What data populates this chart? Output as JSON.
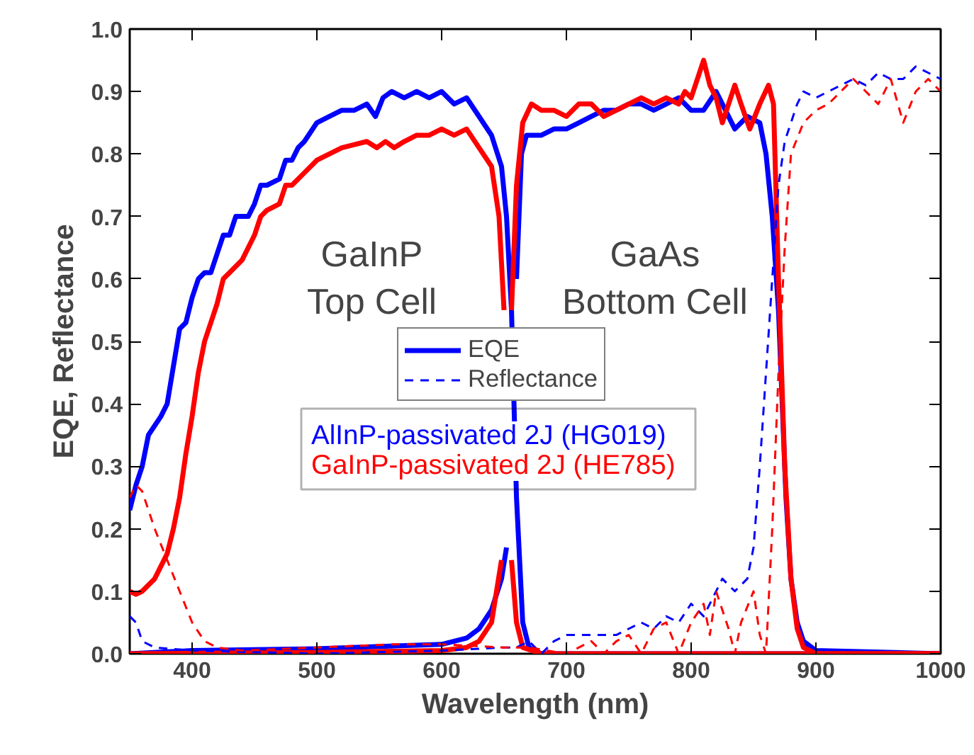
{
  "chart_data": {
    "type": "line",
    "xlabel": "Wavelength (nm)",
    "ylabel": "EQE, Reflectance",
    "xlim": [
      350,
      1000
    ],
    "ylim": [
      0,
      1.0
    ],
    "xticks": [
      400,
      500,
      600,
      700,
      800,
      900,
      1000
    ],
    "yticks": [
      {
        "value": 0,
        "label": "0.0"
      },
      {
        "value": 0.1,
        "label": "0.1"
      },
      {
        "value": 0.2,
        "label": "0.2"
      },
      {
        "value": 0.3,
        "label": "0.3"
      },
      {
        "value": 0.4,
        "label": "0.4"
      },
      {
        "value": 0.5,
        "label": "0.5"
      },
      {
        "value": 0.6,
        "label": "0.6"
      },
      {
        "value": 0.7,
        "label": "0.7"
      },
      {
        "value": 0.8,
        "label": "0.8"
      },
      {
        "value": 0.9,
        "label": "0.9"
      },
      {
        "value": 1.0,
        "label": "1.0"
      }
    ],
    "grid": false,
    "legend": "center",
    "marker": "none",
    "line_style": "solid",
    "annotations": [
      "GaInP\nTop Cell",
      "GaAs\nBottom Cell",
      "AlInP-passivated 2J (HG019)",
      "GaInP-passivated 2J (HE785)"
    ],
    "series": [
      {
        "name": "EQE",
        "color": "#0000ff",
        "x": [
          350,
          355,
          360,
          365,
          375,
          380,
          385,
          390,
          395,
          400,
          405,
          410,
          415,
          420,
          425,
          430,
          435,
          445,
          450,
          455,
          460,
          470,
          475,
          480,
          485,
          490,
          500,
          510,
          520,
          530,
          540,
          547,
          553,
          560,
          570,
          580,
          590,
          600,
          610,
          620,
          630,
          640,
          648,
          652,
          656,
          660,
          665,
          670,
          680,
          1000
        ],
        "values": [
          0.23,
          0.27,
          0.3,
          0.35,
          0.38,
          0.4,
          0.46,
          0.52,
          0.53,
          0.57,
          0.6,
          0.61,
          0.61,
          0.64,
          0.67,
          0.67,
          0.7,
          0.7,
          0.72,
          0.75,
          0.75,
          0.76,
          0.79,
          0.79,
          0.81,
          0.82,
          0.85,
          0.86,
          0.87,
          0.87,
          0.88,
          0.86,
          0.89,
          0.9,
          0.89,
          0.9,
          0.89,
          0.9,
          0.88,
          0.89,
          0.86,
          0.83,
          0.78,
          0.7,
          0.55,
          0.25,
          0.05,
          0.01,
          0.0,
          0.0
        ]
      },
      {
        "color": "#0000ff",
        "x": [
          350,
          400,
          500,
          600,
          620,
          630,
          640,
          648,
          652,
          656,
          660,
          664,
          668,
          675,
          680,
          690,
          700,
          710,
          720,
          730,
          740,
          750,
          760,
          770,
          780,
          790,
          800,
          810,
          820,
          825,
          835,
          845,
          855,
          860,
          865,
          870,
          873,
          876,
          880,
          885,
          890,
          900,
          1000
        ],
        "values": [
          0.0,
          0.005,
          0.008,
          0.015,
          0.025,
          0.04,
          0.07,
          0.12,
          0.17,
          null,
          0.6,
          0.8,
          0.83,
          0.83,
          0.83,
          0.84,
          0.84,
          0.85,
          0.86,
          0.87,
          0.87,
          0.88,
          0.88,
          0.87,
          0.88,
          0.89,
          0.87,
          0.87,
          0.9,
          0.88,
          0.84,
          0.86,
          0.85,
          0.8,
          0.7,
          0.55,
          0.4,
          0.25,
          0.12,
          0.05,
          0.02,
          0.005,
          0.0
        ]
      },
      {
        "color": "#ff0000",
        "x": [
          350,
          355,
          360,
          370,
          380,
          385,
          390,
          395,
          400,
          405,
          410,
          415,
          420,
          425,
          430,
          440,
          450,
          455,
          460,
          470,
          475,
          480,
          490,
          500,
          510,
          520,
          540,
          548,
          555,
          562,
          570,
          580,
          590,
          600,
          610,
          620,
          630,
          640,
          646,
          650,
          653,
          656,
          660,
          665,
          680,
          1000
        ],
        "values": [
          0.1,
          0.095,
          0.1,
          0.12,
          0.16,
          0.2,
          0.25,
          0.32,
          0.38,
          0.45,
          0.5,
          0.53,
          0.56,
          0.6,
          0.61,
          0.63,
          0.67,
          0.7,
          0.71,
          0.72,
          0.75,
          0.75,
          0.77,
          0.79,
          0.8,
          0.81,
          0.82,
          0.81,
          0.82,
          0.81,
          0.82,
          0.83,
          0.83,
          0.84,
          0.83,
          0.84,
          0.81,
          0.78,
          0.7,
          0.55,
          null,
          0.15,
          0.05,
          0.01,
          0.0,
          0.0
        ]
      },
      {
        "color": "#ff0000",
        "x": [
          350,
          500,
          600,
          620,
          630,
          640,
          648,
          652,
          656,
          660,
          665,
          672,
          680,
          690,
          700,
          710,
          720,
          730,
          740,
          750,
          760,
          770,
          780,
          790,
          795,
          800,
          810,
          815,
          820,
          825,
          830,
          835,
          840,
          847,
          855,
          862,
          866,
          870,
          875,
          880,
          885,
          890,
          900,
          1000
        ],
        "values": [
          0.0,
          0.002,
          0.005,
          0.01,
          0.02,
          0.05,
          0.15,
          null,
          0.55,
          0.75,
          0.85,
          0.88,
          0.87,
          0.87,
          0.86,
          0.88,
          0.88,
          0.86,
          0.87,
          0.88,
          0.89,
          0.88,
          0.89,
          0.88,
          0.9,
          0.89,
          0.95,
          0.91,
          0.89,
          0.85,
          0.88,
          0.91,
          0.88,
          0.84,
          0.88,
          0.91,
          0.88,
          0.6,
          0.3,
          0.12,
          0.04,
          0.01,
          0.0,
          0.0
        ]
      },
      {
        "name": "Reflectance",
        "color": "#0000ff",
        "line_style": "dashed",
        "x": [
          350,
          355,
          360,
          370,
          400,
          500,
          600,
          650,
          660,
          670,
          680,
          690,
          700,
          720,
          740,
          750,
          760,
          770,
          780,
          790,
          800,
          810,
          820,
          825,
          835,
          845,
          850,
          855,
          860,
          865,
          870,
          875,
          880,
          885,
          890,
          900,
          910,
          920,
          930,
          940,
          950,
          960,
          970,
          980,
          990,
          1000
        ],
        "values": [
          0.06,
          0.05,
          0.02,
          0.01,
          0.005,
          0.0,
          0.005,
          0.01,
          0.01,
          0.02,
          0.0,
          0.02,
          0.03,
          0.03,
          0.03,
          0.04,
          0.05,
          0.04,
          0.06,
          0.05,
          0.08,
          0.06,
          0.1,
          0.12,
          0.1,
          0.12,
          0.17,
          0.3,
          0.45,
          0.6,
          0.75,
          0.82,
          0.85,
          0.88,
          0.9,
          0.89,
          0.9,
          0.91,
          0.92,
          0.91,
          0.93,
          0.92,
          0.92,
          0.94,
          0.93,
          0.92
        ]
      },
      {
        "color": "#ff0000",
        "line_style": "dashed",
        "x": [
          350,
          355,
          360,
          370,
          380,
          390,
          400,
          410,
          420,
          440,
          500,
          560,
          600,
          650,
          670,
          700,
          720,
          730,
          740,
          750,
          760,
          770,
          780,
          790,
          800,
          810,
          815,
          820,
          830,
          835,
          840,
          850,
          855,
          860,
          865,
          870,
          875,
          880,
          890,
          900,
          910,
          920,
          930,
          940,
          950,
          960,
          970,
          980,
          990,
          1000
        ],
        "values": [
          0.25,
          0.27,
          0.26,
          0.2,
          0.15,
          0.1,
          0.05,
          0.02,
          0.01,
          0.005,
          0.01,
          0.015,
          0.015,
          0.01,
          0.01,
          0.0,
          0.02,
          0.0,
          0.02,
          0.03,
          0.0,
          0.04,
          0.05,
          0.0,
          0.05,
          0.08,
          0.03,
          0.1,
          0.04,
          0.0,
          0.05,
          0.1,
          0.03,
          0.0,
          0.2,
          0.45,
          0.65,
          0.8,
          0.85,
          0.87,
          0.88,
          0.9,
          0.92,
          0.9,
          0.88,
          0.92,
          0.85,
          0.9,
          0.92,
          0.9
        ]
      }
    ]
  }
}
